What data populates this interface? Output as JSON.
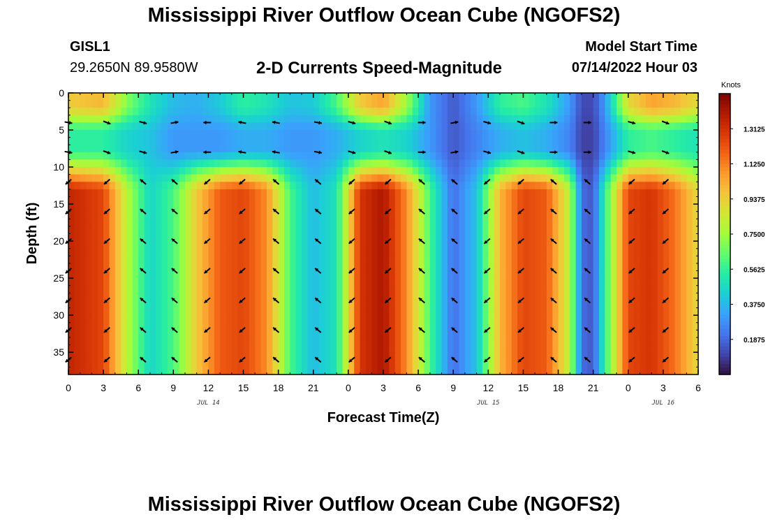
{
  "header": {
    "title": "Mississippi River Outflow Ocean Cube (NGOFS2)",
    "station_id": "GISL1",
    "coordinates": "29.2650N  89.9580W",
    "subtitle": "2-D Currents Speed-Magnitude",
    "model_start_label": "Model Start Time",
    "model_start_value": "07/14/2022 Hour 03"
  },
  "footer": {
    "title": "Mississippi River Outflow Ocean Cube (NGOFS2)"
  },
  "colors": {
    "colormap": [
      "#30123b",
      "#4145ab",
      "#4675ed",
      "#39a2fc",
      "#1bcfd4",
      "#24eca6",
      "#61fc6c",
      "#a4fc3b",
      "#d1e834",
      "#f3c63a",
      "#fe9b2d",
      "#f36315",
      "#d93806",
      "#b11901",
      "#7a0402"
    ],
    "arrow": "#000000",
    "frame": "#000000"
  },
  "chart_data": {
    "type": "heatmap",
    "title": "2-D Currents Speed-Magnitude",
    "xlabel": "Forecast Time(Z)",
    "ylabel": "Depth (ft)",
    "colorbar_label": "Knots",
    "x_range_hours": [
      0,
      54
    ],
    "y_range_ft": [
      0,
      38
    ],
    "y_inverted": true,
    "value_range_knots": [
      0.0,
      1.5
    ],
    "x_ticks_hours": [
      0,
      3,
      6,
      9,
      12,
      15,
      18,
      21,
      24,
      27,
      30,
      33,
      36,
      39,
      42,
      45,
      48,
      51,
      54
    ],
    "x_tick_labels": [
      "0",
      "3",
      "6",
      "9",
      "12",
      "15",
      "18",
      "21",
      "0",
      "3",
      "6",
      "9",
      "12",
      "15",
      "18",
      "21",
      "0",
      "3",
      "6"
    ],
    "y_ticks": [
      0,
      5,
      10,
      15,
      20,
      25,
      30,
      35
    ],
    "y_tick_labels": [
      "0",
      "5",
      "10",
      "15",
      "20",
      "25",
      "30",
      "35"
    ],
    "date_labels": [
      {
        "hour": 12,
        "text": "JUL 14"
      },
      {
        "hour": 36,
        "text": "JUL 15"
      },
      {
        "hour": 51,
        "text": "JUL 16"
      }
    ],
    "colorbar_ticks": [
      "0.1875",
      "0.3750",
      "0.5625",
      "0.7500",
      "0.9375",
      "1.1250",
      "1.3125"
    ],
    "colorbar_tick_values": [
      0.1875,
      0.375,
      0.5625,
      0.75,
      0.9375,
      1.125,
      1.3125
    ],
    "arrow_depths_ft": [
      4,
      8,
      12,
      16,
      20,
      24,
      28,
      32,
      36
    ],
    "arrow_times_hours": [
      0,
      3.3,
      6.4,
      9.1,
      11.9,
      14.9,
      17.8,
      21.4,
      24.3,
      27.4,
      30.3,
      33.1,
      35.9,
      38.8,
      41.6,
      44.5,
      48.3,
      51.2
    ],
    "speed_profile": {
      "time_nodes_hours": [
        0,
        3,
        5,
        7,
        9,
        11,
        13,
        15,
        17,
        19,
        21,
        23,
        25,
        27,
        29,
        31,
        33,
        35,
        37,
        39,
        41,
        43,
        44,
        45,
        46,
        48,
        50,
        52,
        54
      ],
      "surface_knots": [
        0.95,
        1.0,
        0.7,
        0.5,
        0.38,
        0.35,
        0.42,
        0.55,
        0.5,
        0.4,
        0.42,
        0.6,
        0.95,
        1.05,
        0.75,
        0.3,
        0.15,
        0.3,
        0.55,
        0.6,
        0.5,
        0.3,
        0.12,
        0.12,
        0.3,
        0.9,
        1.05,
        1.0,
        0.9
      ],
      "mid_knots": [
        0.55,
        0.55,
        0.45,
        0.4,
        0.3,
        0.3,
        0.3,
        0.35,
        0.35,
        0.3,
        0.3,
        0.35,
        0.45,
        0.5,
        0.45,
        0.3,
        0.15,
        0.25,
        0.35,
        0.4,
        0.35,
        0.25,
        0.1,
        0.1,
        0.25,
        0.55,
        0.6,
        0.55,
        0.5
      ],
      "deep_knots": [
        1.35,
        1.25,
        0.8,
        0.45,
        0.6,
        0.95,
        1.2,
        1.25,
        1.1,
        0.6,
        0.38,
        0.5,
        1.3,
        1.4,
        1.1,
        0.6,
        0.2,
        0.4,
        1.0,
        1.25,
        1.2,
        0.8,
        0.2,
        0.15,
        0.55,
        1.25,
        1.3,
        1.15,
        0.9
      ]
    },
    "arrow_directions_deg": {
      "shallow_rows": [
        10,
        20,
        15,
        -10,
        180,
        190,
        190,
        10,
        15,
        20,
        0,
        -10,
        15,
        20,
        0,
        0,
        15,
        20
      ],
      "deep_rows_flood": 40,
      "deep_rows_ebb": 140
    }
  }
}
